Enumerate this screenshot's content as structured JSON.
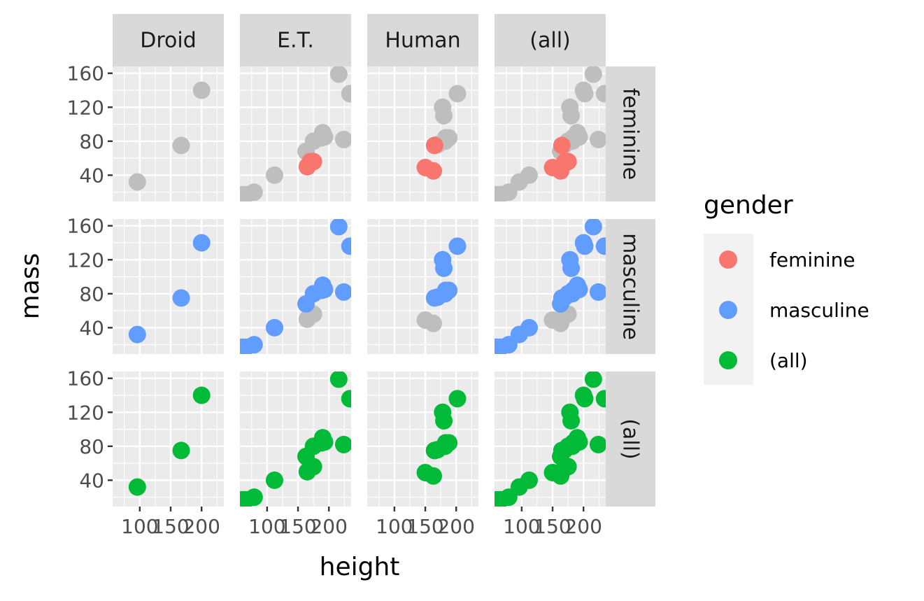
{
  "chart_data": {
    "type": "scatter",
    "xlabel": "height",
    "ylabel": "mass",
    "xlim": [
      56,
      236
    ],
    "ylim": [
      9,
      168
    ],
    "x_major_ticks": [
      100,
      150,
      200
    ],
    "x_tick_labels": [
      "100",
      "150",
      "200"
    ],
    "x_minor_ticks": [
      75,
      125,
      175,
      225
    ],
    "y_major_ticks": [
      40,
      80,
      120,
      160
    ],
    "y_tick_labels": [
      "40",
      "80",
      "120",
      "160"
    ],
    "y_minor_ticks": [
      20,
      60,
      100,
      140
    ],
    "col_facets": [
      "Droid",
      "E.T.",
      "Human",
      "(all)"
    ],
    "row_facets": [
      "feminine",
      "masculine",
      "(all)"
    ],
    "legend": {
      "title": "gender",
      "position": "right",
      "entries": [
        {
          "label": "feminine",
          "color": "#f8766d"
        },
        {
          "label": "masculine",
          "color": "#619cff"
        },
        {
          "label": "(all)",
          "color": "#00ba38"
        }
      ]
    },
    "background_color": "#bebebe",
    "panels_note_colors": {
      "highlight_row": true
    },
    "groups": {
      "Droid": {
        "masculine": [
          [
            96,
            32
          ],
          [
            167,
            75
          ],
          [
            200,
            140
          ]
        ],
        "feminine": []
      },
      "E.T.": {
        "feminine": [
          [
            165,
            50
          ],
          [
            170,
            56
          ],
          [
            175,
            56
          ]
        ],
        "masculine": [
          [
            60,
            17
          ],
          [
            66,
            17
          ],
          [
            79,
            20
          ],
          [
            112,
            40
          ],
          [
            163,
            68
          ],
          [
            175,
            80
          ],
          [
            188,
            84
          ],
          [
            190,
            90
          ],
          [
            193,
            85
          ],
          [
            216,
            159
          ],
          [
            224,
            82
          ],
          [
            234,
            136
          ]
        ]
      },
      "Human": {
        "feminine": [
          [
            150,
            49
          ],
          [
            163,
            45
          ],
          [
            165,
            75
          ]
        ],
        "masculine": [
          [
            165,
            75
          ],
          [
            170,
            76
          ],
          [
            178,
            120
          ],
          [
            180,
            110
          ],
          [
            182,
            80
          ],
          [
            183,
            84
          ],
          [
            188,
            84
          ],
          [
            202,
            136
          ]
        ]
      }
    }
  }
}
